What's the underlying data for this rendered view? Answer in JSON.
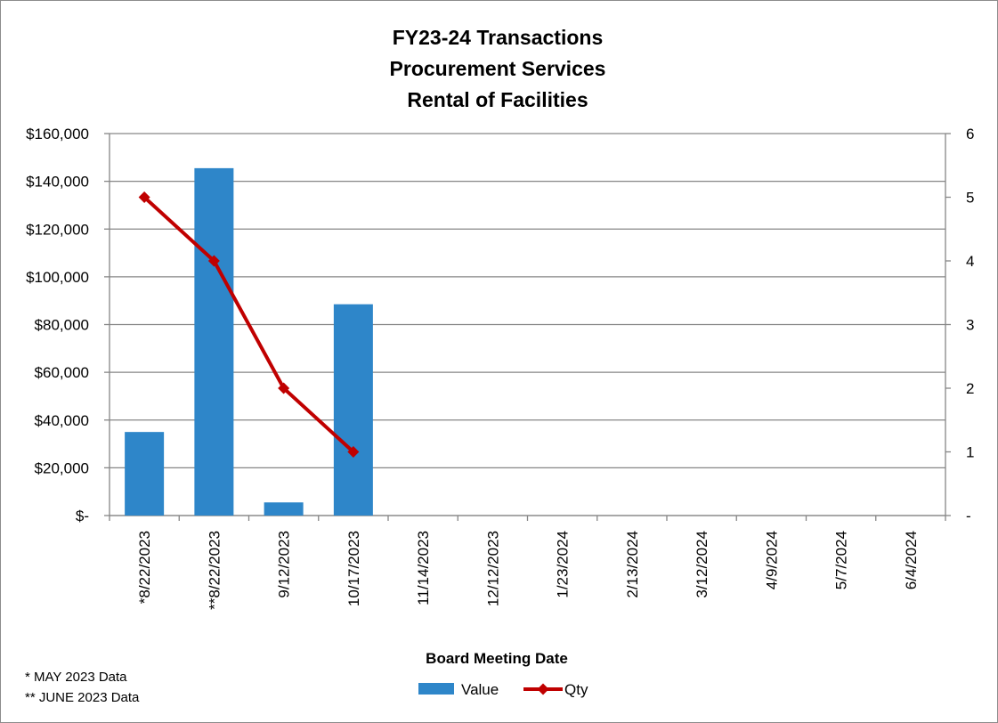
{
  "chart_data": {
    "type": "bar",
    "title": [
      "FY23-24 Transactions",
      "Procurement Services",
      "Rental of Facilities"
    ],
    "xlabel": "Board Meeting Date",
    "categories": [
      "*8/22/2023",
      "**8/22/2023",
      "9/12/2023",
      "10/17/2023",
      "11/14/2023",
      "12/12/2023",
      "1/23/2024",
      "2/13/2024",
      "3/12/2024",
      "4/9/2024",
      "5/7/2024",
      "6/4/2024"
    ],
    "series": [
      {
        "name": "Value",
        "type": "bar",
        "axis": "left",
        "color": "#2e86c9",
        "values": [
          35000,
          145500,
          5500,
          88500,
          null,
          null,
          null,
          null,
          null,
          null,
          null,
          null
        ]
      },
      {
        "name": "Qty",
        "type": "line",
        "axis": "right",
        "color": "#c00000",
        "values": [
          5,
          4,
          2,
          1,
          null,
          null,
          null,
          null,
          null,
          null,
          null,
          null
        ]
      }
    ],
    "y_left": {
      "ylim": [
        0,
        160000
      ],
      "ticks": [
        0,
        20000,
        40000,
        60000,
        80000,
        100000,
        120000,
        140000,
        160000
      ],
      "tick_labels": [
        "$-",
        "$20,000",
        "$40,000",
        "$60,000",
        "$80,000",
        "$100,000",
        "$120,000",
        "$140,000",
        "$160,000"
      ]
    },
    "y_right": {
      "ylim": [
        0,
        6
      ],
      "ticks": [
        0,
        1,
        2,
        3,
        4,
        5,
        6
      ],
      "tick_labels": [
        "-",
        "1",
        "2",
        "3",
        "4",
        "5",
        "6"
      ]
    },
    "grid": true,
    "legend": "bottom",
    "notes": [
      "*  MAY 2023 Data",
      "** JUNE 2023 Data"
    ]
  }
}
